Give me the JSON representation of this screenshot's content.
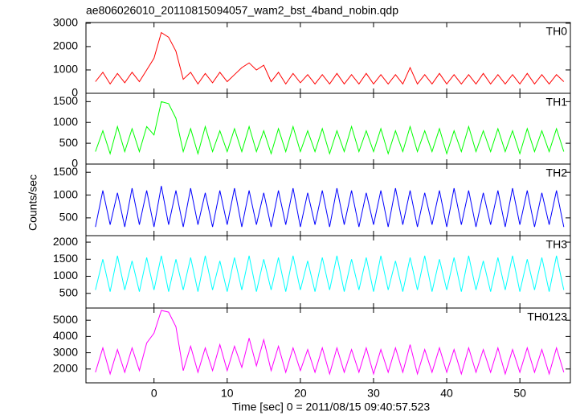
{
  "chart_data": {
    "type": "line",
    "title": "ae806026010_20110815094057_wam2_bst_4band_nobin.qdp",
    "xlabel": "Time [sec] 0 = 2011/08/15 09:40:57.523",
    "ylabel": "Counts/sec",
    "xlim": [
      -9.3,
      56.9
    ],
    "xticks": [
      0,
      10,
      20,
      30,
      40,
      50
    ],
    "x": [
      -8,
      -7,
      -6,
      -5,
      -4,
      -3,
      -2,
      -1,
      0,
      1,
      2,
      3,
      4,
      5,
      6,
      7,
      8,
      9,
      10,
      11,
      12,
      13,
      14,
      15,
      16,
      17,
      18,
      19,
      20,
      21,
      22,
      23,
      24,
      25,
      26,
      27,
      28,
      29,
      30,
      31,
      32,
      33,
      34,
      35,
      36,
      37,
      38,
      39,
      40,
      41,
      42,
      43,
      44,
      45,
      46,
      47,
      48,
      49,
      50,
      51,
      52,
      53,
      54,
      55,
      56
    ],
    "series": [
      {
        "name": "TH0",
        "color": "#ff0000",
        "ylim": [
          0,
          3030
        ],
        "yticks": [
          0,
          1000,
          2000,
          3000
        ],
        "values": [
          500,
          900,
          400,
          850,
          450,
          900,
          500,
          1000,
          1500,
          2600,
          2400,
          1800,
          600,
          900,
          400,
          850,
          450,
          900,
          500,
          800,
          1100,
          1300,
          1000,
          1200,
          500,
          900,
          400,
          850,
          450,
          800,
          400,
          800,
          400,
          850,
          400,
          800,
          400,
          850,
          400,
          800,
          400,
          800,
          400,
          1100,
          400,
          800,
          400,
          850,
          400,
          800,
          400,
          800,
          400,
          850,
          400,
          800,
          400,
          800,
          400,
          850,
          400,
          800,
          400,
          800,
          500
        ]
      },
      {
        "name": "TH1",
        "color": "#00ff00",
        "ylim": [
          0,
          1700
        ],
        "yticks": [
          0,
          500,
          1000,
          1500
        ],
        "values": [
          300,
          800,
          250,
          900,
          300,
          850,
          300,
          900,
          700,
          1500,
          1450,
          1100,
          300,
          850,
          250,
          900,
          300,
          800,
          300,
          850,
          300,
          900,
          300,
          800,
          250,
          850,
          300,
          900,
          300,
          800,
          300,
          850,
          250,
          800,
          300,
          900,
          300,
          800,
          300,
          850,
          250,
          800,
          300,
          900,
          300,
          800,
          300,
          850,
          250,
          800,
          300,
          900,
          300,
          800,
          300,
          850,
          300,
          800,
          250,
          850,
          300,
          800,
          300,
          850,
          300
        ]
      },
      {
        "name": "TH2",
        "color": "#0000ff",
        "ylim": [
          110,
          1680
        ],
        "yticks": [
          500,
          1000,
          1500
        ],
        "values": [
          300,
          1100,
          350,
          1050,
          300,
          1150,
          350,
          1100,
          300,
          1200,
          350,
          1100,
          300,
          1150,
          350,
          1050,
          300,
          1100,
          350,
          1150,
          300,
          1100,
          350,
          1050,
          300,
          1100,
          350,
          1150,
          300,
          1050,
          350,
          1100,
          300,
          1150,
          350,
          1100,
          300,
          1050,
          350,
          1100,
          300,
          1150,
          350,
          1100,
          300,
          1050,
          350,
          1100,
          300,
          1150,
          350,
          1100,
          300,
          1050,
          350,
          1100,
          300,
          1150,
          350,
          1100,
          300,
          1050,
          350,
          1100,
          300
        ]
      },
      {
        "name": "TH3",
        "color": "#00ffff",
        "ylim": [
          70,
          2190
        ],
        "yticks": [
          500,
          1000,
          1500,
          2000
        ],
        "values": [
          600,
          1500,
          550,
          1600,
          600,
          1450,
          550,
          1550,
          600,
          1600,
          550,
          1500,
          600,
          1550,
          550,
          1600,
          600,
          1450,
          550,
          1550,
          600,
          1600,
          550,
          1500,
          600,
          1550,
          550,
          1600,
          600,
          1450,
          550,
          1550,
          600,
          1600,
          550,
          1500,
          600,
          1550,
          550,
          1600,
          600,
          1450,
          550,
          1550,
          600,
          1600,
          550,
          1500,
          600,
          1550,
          550,
          1600,
          600,
          1450,
          550,
          1550,
          600,
          1600,
          550,
          1500,
          600,
          1550,
          550,
          1600,
          600
        ]
      },
      {
        "name": "TH0123",
        "color": "#ff00ff",
        "ylim": [
          1150,
          5750
        ],
        "yticks": [
          2000,
          3000,
          4000,
          5000
        ],
        "values": [
          1800,
          3300,
          1700,
          3200,
          1800,
          3300,
          1900,
          3600,
          4200,
          5600,
          5500,
          4600,
          1900,
          3400,
          1800,
          3300,
          1900,
          3500,
          1900,
          3400,
          2100,
          3900,
          2200,
          3800,
          1900,
          3400,
          1800,
          3300,
          1900,
          3200,
          1800,
          3300,
          1700,
          3300,
          1800,
          3200,
          1800,
          3300,
          1700,
          3200,
          1800,
          3300,
          1800,
          3500,
          1700,
          3200,
          1800,
          3300,
          1800,
          3200,
          1700,
          3300,
          1800,
          3200,
          1800,
          3300,
          1700,
          3200,
          1800,
          3300,
          1800,
          3200,
          1700,
          3300,
          1800
        ]
      }
    ]
  }
}
